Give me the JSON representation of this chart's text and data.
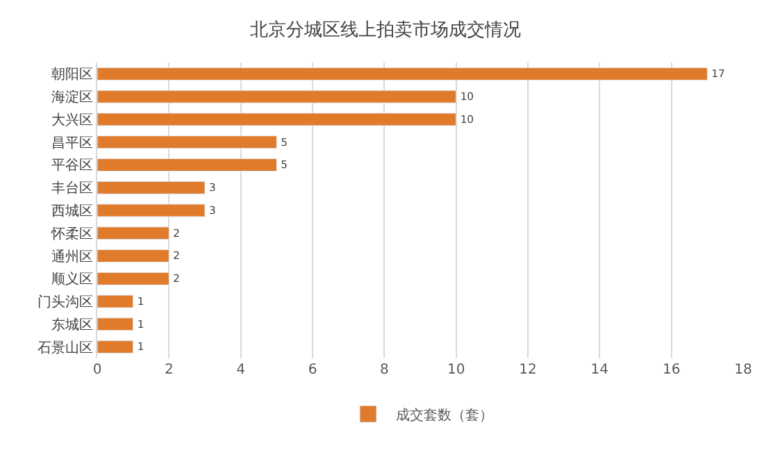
{
  "chart_data": {
    "type": "bar",
    "orientation": "horizontal",
    "title": "北京分城区线上拍卖市场成交情况",
    "categories": [
      "朝阳区",
      "海淀区",
      "大兴区",
      "昌平区",
      "平谷区",
      "丰台区",
      "西城区",
      "怀柔区",
      "通州区",
      "顺义区",
      "门头沟区",
      "东城区",
      "石景山区"
    ],
    "series": [
      {
        "name": "成交套数（套）",
        "color": "#e07b2c",
        "values": [
          17,
          10,
          10,
          5,
          5,
          3,
          3,
          2,
          2,
          2,
          1,
          1,
          1
        ]
      }
    ],
    "xlim": [
      0,
      18
    ],
    "xticks": [
      0,
      2,
      4,
      6,
      8,
      10,
      12,
      14,
      16,
      18
    ],
    "grid": "x",
    "legend": "bottom",
    "data_labels": true
  }
}
